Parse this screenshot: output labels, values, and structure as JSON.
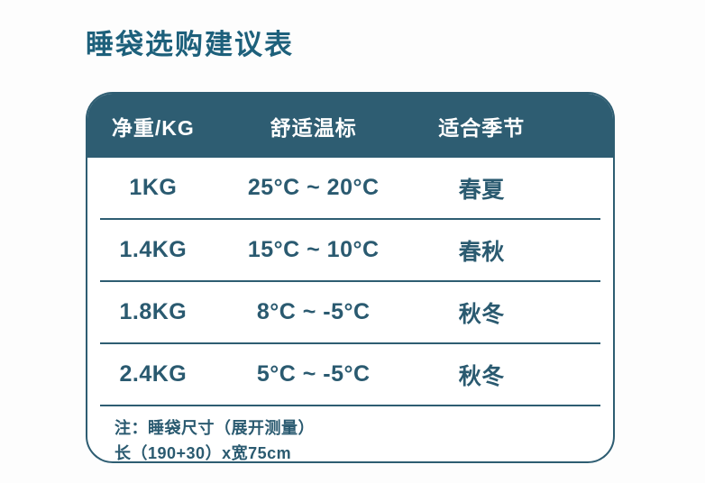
{
  "title": "睡袋选购建议表",
  "chart_data": {
    "type": "table",
    "title": "睡袋选购建议表",
    "columns": [
      "净重/KG",
      "舒适温标",
      "适合季节"
    ],
    "rows": [
      [
        "1KG",
        "25°C ~ 20°C",
        "春夏"
      ],
      [
        "1.4KG",
        "15°C ~ 10°C",
        "春秋"
      ],
      [
        "1.8KG",
        "8°C ~ -5°C",
        "秋冬"
      ],
      [
        "2.4KG",
        "5°C ~ -5°C",
        "秋冬"
      ]
    ],
    "notes": [
      "注：睡袋尺寸（展开测量）",
      "长（190+30）x宽75cm"
    ]
  },
  "colors": {
    "header_bg": "#2e5d72",
    "header_text": "#ffffff",
    "title_text": "#1d607b",
    "body_text": "#2a5a70",
    "border": "#2e5d72",
    "table_bg": "#ffffff",
    "page_bg": "#fdfdfd"
  }
}
